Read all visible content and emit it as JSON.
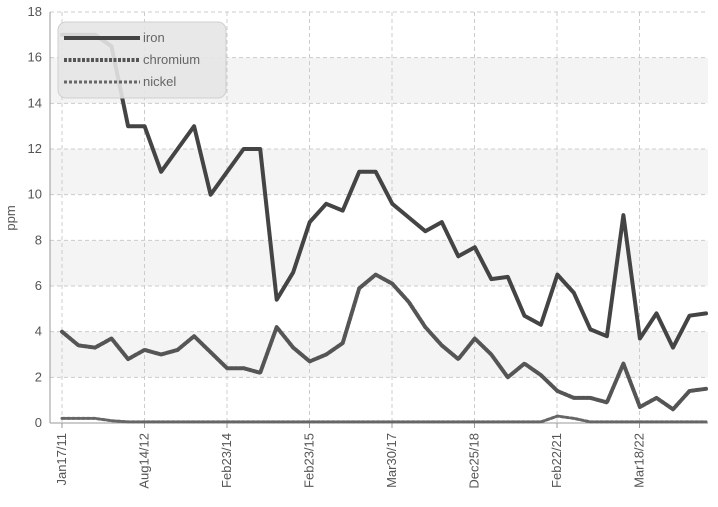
{
  "chart_data": {
    "type": "line",
    "title": "",
    "xlabel": "",
    "ylabel": "ppm",
    "ylim": [
      0,
      18
    ],
    "y_ticks": [
      0,
      2,
      4,
      6,
      8,
      10,
      12,
      14,
      16,
      18
    ],
    "x_tick_labels": [
      "Jan17/11",
      "Aug14/12",
      "Feb23/14",
      "Feb23/15",
      "Mar30/17",
      "Dec25/18",
      "Feb22/21",
      "Mar18/22"
    ],
    "grid": true,
    "legend_position": "top-left",
    "series": [
      {
        "name": "iron",
        "color": "#444444",
        "style": "solid",
        "values": [
          17,
          17,
          17,
          16.5,
          13,
          13,
          11,
          12,
          13,
          10,
          11,
          12,
          12,
          5.4,
          6.6,
          8.8,
          9.6,
          9.3,
          11,
          11,
          9.6,
          9.0,
          8.4,
          8.8,
          7.3,
          7.7,
          6.3,
          6.4,
          4.7,
          4.3,
          6.5,
          5.7,
          4.1,
          3.8,
          9.1,
          3.7,
          4.8,
          3.3,
          4.7,
          4.8
        ]
      },
      {
        "name": "chromium",
        "color": "#555555",
        "style": "heavy-dashed",
        "values": [
          4.0,
          3.4,
          3.3,
          3.7,
          2.8,
          3.2,
          3.0,
          3.2,
          3.8,
          3.1,
          2.4,
          2.4,
          2.2,
          4.2,
          3.3,
          2.7,
          3.0,
          3.5,
          5.9,
          6.5,
          6.1,
          5.3,
          4.2,
          3.4,
          2.8,
          3.7,
          3.0,
          2.0,
          2.6,
          2.1,
          1.4,
          1.1,
          1.1,
          0.9,
          2.6,
          0.7,
          1.1,
          0.6,
          1.4,
          1.5
        ]
      },
      {
        "name": "nickel",
        "color": "#666666",
        "style": "dashed",
        "values": [
          0.2,
          0.2,
          0.2,
          0.1,
          0.05,
          0.05,
          0.05,
          0.05,
          0.05,
          0.05,
          0.05,
          0.05,
          0.05,
          0.05,
          0.05,
          0.05,
          0.05,
          0.05,
          0.05,
          0.05,
          0.05,
          0.05,
          0.05,
          0.05,
          0.05,
          0.05,
          0.05,
          0.05,
          0.05,
          0.05,
          0.3,
          0.2,
          0.05,
          0.05,
          0.05,
          0.05,
          0.05,
          0.05,
          0.05,
          0.05
        ]
      }
    ]
  }
}
